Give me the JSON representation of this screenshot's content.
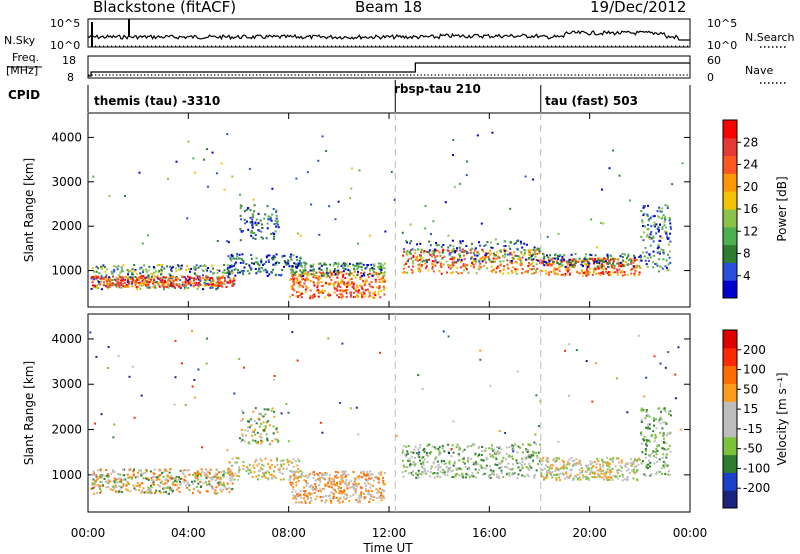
{
  "header": {
    "station": "Blackstone (fitACF)",
    "beam": "Beam 18",
    "date": "19/Dec/2012"
  },
  "panels": {
    "nsky": {
      "label": "N.Sky",
      "left_ticks": [
        "10^5",
        "10^0"
      ],
      "right_ticks": [
        "10^5",
        "10^0"
      ],
      "right_label": "N.Search"
    },
    "freq": {
      "label_top": "Freq.",
      "label_bottom": "[MHz]",
      "left_ticks": [
        "18",
        "8"
      ],
      "right_ticks": [
        "60",
        "0"
      ],
      "right_label": "Nave"
    },
    "cpid": {
      "label": "CPID",
      "segments": [
        "themis (tau) -3310",
        "rbsp-tau 210",
        "tau (fast) 503"
      ]
    }
  },
  "colors": {
    "power": [
      "#0000cc",
      "#2b4fd8",
      "#2e7d32",
      "#4caf50",
      "#8bc34a",
      "#f5c400",
      "#ff9800",
      "#ff5722",
      "#e53935",
      "#ff0000"
    ],
    "velocity": [
      "#1a237e",
      "#1e40c8",
      "#2e7d32",
      "#7cc23a",
      "#bdbdbd",
      "#bdbdbd",
      "#ff9a1a",
      "#ff6d00",
      "#ff2a00",
      "#e00000"
    ]
  },
  "chart_data": [
    {
      "type": "heatmap",
      "title": "",
      "xlabel": "",
      "ylabel": "Slant Range [km]",
      "x_ticks": [
        "00:00",
        "04:00",
        "08:00",
        "12:00",
        "16:00",
        "20:00",
        "00:00"
      ],
      "y_ticks": [
        "1000",
        "2000",
        "3000",
        "4000"
      ],
      "xlim_hours": [
        0,
        24
      ],
      "ylim_km": [
        180,
        4550
      ],
      "colorbar": {
        "label": "Power [dB]",
        "ticks": [
          "4",
          "8",
          "12",
          "16",
          "20",
          "24",
          "28"
        ]
      }
    },
    {
      "type": "heatmap",
      "title": "",
      "xlabel": "Time UT",
      "ylabel": "Slant Range [km]",
      "x_ticks": [
        "00:00",
        "04:00",
        "08:00",
        "12:00",
        "16:00",
        "20:00",
        "00:00"
      ],
      "y_ticks": [
        "1000",
        "2000",
        "3000",
        "4000"
      ],
      "xlim_hours": [
        0,
        24
      ],
      "ylim_km": [
        180,
        4550
      ],
      "colorbar": {
        "label": "Velocity [m s⁻¹]",
        "ticks": [
          "200",
          "100",
          "50",
          "15",
          "-15",
          "-50",
          "-100",
          "-200"
        ]
      }
    }
  ]
}
